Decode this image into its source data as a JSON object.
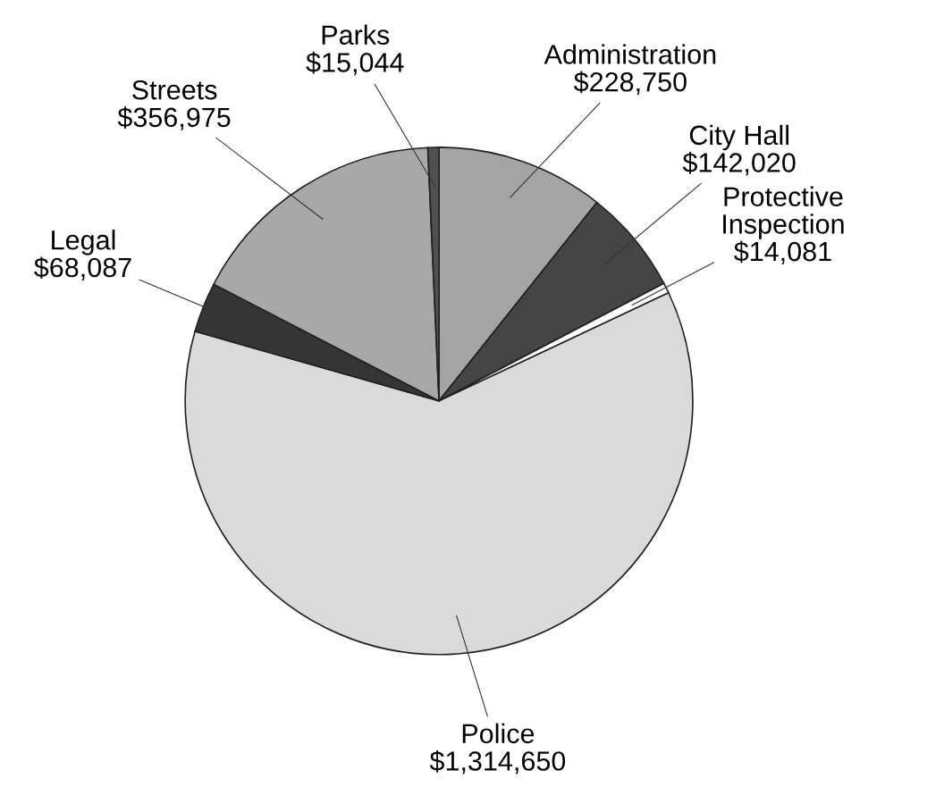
{
  "chart_data": {
    "type": "pie",
    "categories": [
      "Administration",
      "City Hall",
      "Protective\nInspection",
      "Police",
      "Legal",
      "Streets",
      "Parks"
    ],
    "values": [
      228750,
      142020,
      14081,
      1314650,
      68087,
      356975,
      15044
    ],
    "value_labels": [
      "$228,750",
      "$142,020",
      "$14,081",
      "$1,314,650",
      "$68,087",
      "$356,975",
      "$15,044"
    ],
    "colors": [
      "#a4a4a4",
      "#454545",
      "#ffffff",
      "#dadada",
      "#353535",
      "#a8a8a8",
      "#505050"
    ]
  }
}
